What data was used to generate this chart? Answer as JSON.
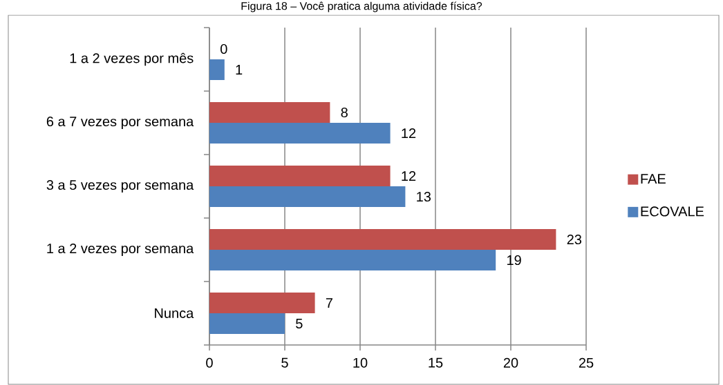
{
  "chart_data": {
    "type": "bar",
    "orientation": "horizontal",
    "title": "Figura 18 – Você pratica alguma atividade física?",
    "categories": [
      "1 a 2 vezes por mês",
      "6 a 7 vezes por semana",
      "3 a 5 vezes por semana",
      "1 a 2 vezes por semana",
      "Nunca"
    ],
    "series": [
      {
        "name": "FAE",
        "color": "#c0504d",
        "values": [
          0,
          8,
          12,
          23,
          7
        ]
      },
      {
        "name": "ECOVALE",
        "color": "#4f81bd",
        "values": [
          1,
          12,
          13,
          19,
          5
        ]
      }
    ],
    "xlim": [
      0,
      25
    ],
    "xticks": [
      0,
      5,
      10,
      15,
      20,
      25
    ],
    "grid": "x",
    "legend": "right",
    "data_labels": true
  }
}
